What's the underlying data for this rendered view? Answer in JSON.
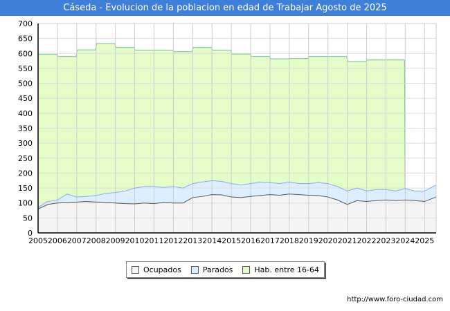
{
  "title": "Cáseda - Evolucion de la poblacion en edad de Trabajar Agosto de 2025",
  "url": "http://www.foro-ciudad.com",
  "colors": {
    "ocupados_fill": "#f4f4f4",
    "ocupados_line": "#555555",
    "parados_fill": "#ddeeff",
    "parados_line": "#88aaee",
    "hab_fill": "#e4fcc8",
    "hab_line": "#77bb99"
  },
  "chart_data": {
    "type": "area",
    "title": "Cáseda - Evolucion de la poblacion en edad de Trabajar Agosto de 2025",
    "xlabel": "",
    "ylabel": "",
    "ylim": [
      0,
      700
    ],
    "xlim": [
      2005,
      2025.6
    ],
    "yticks": [
      "0",
      "50",
      "100",
      "150",
      "200",
      "250",
      "300",
      "350",
      "400",
      "450",
      "500",
      "550",
      "600",
      "650",
      "700"
    ],
    "xticks": [
      "2005",
      "2006",
      "2007",
      "2008",
      "2009",
      "2010",
      "2011",
      "2012",
      "2013",
      "2014",
      "2015",
      "2016",
      "2017",
      "2018",
      "2019",
      "2020",
      "2021",
      "2022",
      "2023",
      "2024",
      "2025"
    ],
    "legend": [
      "Ocupados",
      "Parados",
      "Hab. entre 16-64"
    ],
    "legend_position": "bottom",
    "grid": true,
    "hab": {
      "years": [
        2005,
        2006,
        2007,
        2008,
        2009,
        2010,
        2011,
        2012,
        2013,
        2014,
        2015,
        2016,
        2017,
        2018,
        2019,
        2020,
        2021,
        2022,
        2023
      ],
      "values": [
        597,
        590,
        612,
        633,
        620,
        611,
        611,
        606,
        620,
        611,
        598,
        590,
        582,
        583,
        590,
        590,
        573,
        578,
        578
      ],
      "end": 2024
    },
    "x": [
      2005,
      2005.5,
      2006,
      2006.5,
      2007,
      2007.5,
      2008,
      2008.5,
      2009,
      2009.5,
      2010,
      2010.5,
      2011,
      2011.5,
      2012,
      2012.5,
      2013,
      2013.5,
      2014,
      2014.5,
      2015,
      2015.5,
      2016,
      2016.5,
      2017,
      2017.5,
      2018,
      2018.5,
      2019,
      2019.5,
      2020,
      2020.5,
      2021,
      2021.5,
      2022,
      2022.5,
      2023,
      2023.5,
      2024,
      2024.5,
      2025,
      2025.6
    ],
    "series": [
      {
        "name": "Ocupados",
        "values": [
          80,
          95,
          100,
          102,
          103,
          105,
          103,
          102,
          100,
          98,
          97,
          100,
          98,
          102,
          100,
          100,
          118,
          122,
          128,
          127,
          120,
          118,
          122,
          125,
          128,
          126,
          130,
          128,
          126,
          125,
          120,
          110,
          95,
          108,
          105,
          108,
          110,
          108,
          110,
          108,
          105,
          120
        ]
      },
      {
        "name": "Parados",
        "values": [
          5,
          10,
          10,
          28,
          17,
          17,
          22,
          30,
          35,
          42,
          53,
          55,
          57,
          50,
          55,
          50,
          47,
          48,
          47,
          45,
          45,
          42,
          43,
          45,
          40,
          39,
          40,
          37,
          39,
          43,
          45,
          45,
          45,
          42,
          35,
          37,
          35,
          32,
          38,
          32,
          35,
          40
        ]
      }
    ]
  }
}
